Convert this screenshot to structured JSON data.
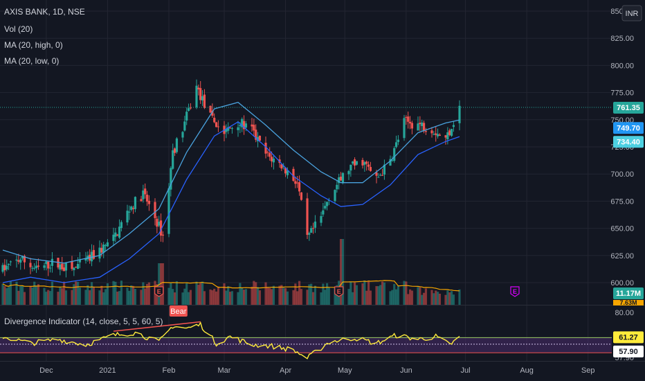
{
  "chart_data": {
    "type": "candlestick",
    "symbol_title": "AXIS BANK, 1D, NSE",
    "currency_badge": "INR",
    "indicators": [
      {
        "label": "Vol (20)",
        "color": "#d1d4dc"
      },
      {
        "label": "MA (20, high, 0)",
        "color": "#4aa3df"
      },
      {
        "label": "MA (20, low, 0)",
        "color": "#2962ff"
      }
    ],
    "price_axis": {
      "ticks": [
        "850.00",
        "825.00",
        "800.00",
        "775.00",
        "750.00",
        "725.00",
        "700.00",
        "675.00",
        "650.00",
        "625.00",
        "600.00"
      ],
      "ylim": [
        588,
        850
      ]
    },
    "time_axis": {
      "ticks": [
        "Dec",
        "2021",
        "Feb",
        "Mar",
        "Apr",
        "May",
        "Jun",
        "Jul",
        "Aug",
        "Sep"
      ],
      "start": "2020-11-09",
      "end": "2021-09-06"
    },
    "price_tags": [
      {
        "value": "761.35",
        "color": "#26a69a"
      },
      {
        "value": "749.70",
        "color": "#2196f3"
      },
      {
        "value": "734.40",
        "color": "#4dd0e1"
      }
    ],
    "volume_tag": {
      "value": "11.17M",
      "color": "#26a69a"
    },
    "volume_tag2": {
      "value": "7.63M",
      "color": "#f7a600"
    },
    "price_points": [
      {
        "d": "2020-11-09",
        "p": 612
      },
      {
        "d": "2020-11-18",
        "p": 622
      },
      {
        "d": "2020-11-26",
        "p": 612
      },
      {
        "d": "2020-12-04",
        "p": 618
      },
      {
        "d": "2020-12-14",
        "p": 612
      },
      {
        "d": "2020-12-23",
        "p": 622
      },
      {
        "d": "2021-01-04",
        "p": 640
      },
      {
        "d": "2021-01-12",
        "p": 668
      },
      {
        "d": "2021-01-19",
        "p": 682
      },
      {
        "d": "2021-01-25",
        "p": 660
      },
      {
        "d": "2021-01-29",
        "p": 643
      },
      {
        "d": "2021-02-03",
        "p": 720
      },
      {
        "d": "2021-02-08",
        "p": 742
      },
      {
        "d": "2021-02-15",
        "p": 780
      },
      {
        "d": "2021-02-22",
        "p": 752
      },
      {
        "d": "2021-03-01",
        "p": 738
      },
      {
        "d": "2021-03-08",
        "p": 748
      },
      {
        "d": "2021-03-15",
        "p": 740
      },
      {
        "d": "2021-03-22",
        "p": 718
      },
      {
        "d": "2021-03-30",
        "p": 708
      },
      {
        "d": "2021-04-07",
        "p": 692
      },
      {
        "d": "2021-04-12",
        "p": 640
      },
      {
        "d": "2021-04-19",
        "p": 660
      },
      {
        "d": "2021-04-23",
        "p": 680
      },
      {
        "d": "2021-05-03",
        "p": 705
      },
      {
        "d": "2021-05-10",
        "p": 712
      },
      {
        "d": "2021-05-17",
        "p": 695
      },
      {
        "d": "2021-05-24",
        "p": 712
      },
      {
        "d": "2021-05-31",
        "p": 748
      },
      {
        "d": "2021-06-07",
        "p": 746
      },
      {
        "d": "2021-06-14",
        "p": 742
      },
      {
        "d": "2021-06-21",
        "p": 732
      },
      {
        "d": "2021-06-28",
        "p": 761
      }
    ],
    "ma_high_points": [
      {
        "d": "2020-11-09",
        "p": 630
      },
      {
        "d": "2020-11-23",
        "p": 622
      },
      {
        "d": "2020-12-10",
        "p": 618
      },
      {
        "d": "2020-12-28",
        "p": 625
      },
      {
        "d": "2021-01-12",
        "p": 645
      },
      {
        "d": "2021-01-27",
        "p": 668
      },
      {
        "d": "2021-02-10",
        "p": 720
      },
      {
        "d": "2021-02-24",
        "p": 760
      },
      {
        "d": "2021-03-08",
        "p": 766
      },
      {
        "d": "2021-03-22",
        "p": 745
      },
      {
        "d": "2021-04-05",
        "p": 722
      },
      {
        "d": "2021-04-19",
        "p": 702
      },
      {
        "d": "2021-04-29",
        "p": 692
      },
      {
        "d": "2021-05-10",
        "p": 692
      },
      {
        "d": "2021-05-24",
        "p": 712
      },
      {
        "d": "2021-06-07",
        "p": 738
      },
      {
        "d": "2021-06-21",
        "p": 747
      },
      {
        "d": "2021-06-28",
        "p": 749.7
      }
    ],
    "ma_low_points": [
      {
        "d": "2020-11-09",
        "p": 600
      },
      {
        "d": "2020-11-23",
        "p": 605
      },
      {
        "d": "2020-12-10",
        "p": 600
      },
      {
        "d": "2020-12-28",
        "p": 605
      },
      {
        "d": "2021-01-12",
        "p": 622
      },
      {
        "d": "2021-01-27",
        "p": 645
      },
      {
        "d": "2021-02-10",
        "p": 695
      },
      {
        "d": "2021-02-24",
        "p": 735
      },
      {
        "d": "2021-03-08",
        "p": 748
      },
      {
        "d": "2021-03-22",
        "p": 725
      },
      {
        "d": "2021-04-05",
        "p": 698
      },
      {
        "d": "2021-04-19",
        "p": 680
      },
      {
        "d": "2021-04-29",
        "p": 670
      },
      {
        "d": "2021-05-10",
        "p": 672
      },
      {
        "d": "2021-05-24",
        "p": 690
      },
      {
        "d": "2021-06-07",
        "p": 718
      },
      {
        "d": "2021-06-21",
        "p": 730
      },
      {
        "d": "2021-06-28",
        "p": 734.4
      }
    ],
    "earnings_markers": [
      {
        "d": "2021-01-27",
        "label": "E",
        "color": "#e5534b"
      },
      {
        "d": "2021-04-28",
        "label": "E",
        "color": "#e5534b"
      },
      {
        "d": "2021-07-26",
        "label": "E",
        "color": "#d500f9"
      }
    ],
    "oscillator": {
      "label": "Divergence Indicator (14, close, 5, 5, 60, 5)",
      "ticks": [
        "80.00",
        "57.90"
      ],
      "ylim": [
        45,
        82
      ],
      "upper_line": 61.27,
      "mid_line": 57.9,
      "lower_line": 50,
      "tags": [
        {
          "value": "61.27",
          "color": "#ffeb3b"
        },
        {
          "value": "57.90",
          "color": "#ffffff"
        }
      ],
      "bear_label": "Bear",
      "points": [
        {
          "d": "2020-11-09",
          "v": 62
        },
        {
          "d": "2020-11-23",
          "v": 57
        },
        {
          "d": "2020-12-07",
          "v": 60
        },
        {
          "d": "2020-12-21",
          "v": 56
        },
        {
          "d": "2021-01-04",
          "v": 63
        },
        {
          "d": "2021-01-15",
          "v": 65
        },
        {
          "d": "2021-01-27",
          "v": 58
        },
        {
          "d": "2021-02-03",
          "v": 70
        },
        {
          "d": "2021-02-10",
          "v": 68
        },
        {
          "d": "2021-02-17",
          "v": 71
        },
        {
          "d": "2021-02-25",
          "v": 57
        },
        {
          "d": "2021-03-04",
          "v": 62
        },
        {
          "d": "2021-03-15",
          "v": 56
        },
        {
          "d": "2021-03-25",
          "v": 55
        },
        {
          "d": "2021-04-05",
          "v": 52
        },
        {
          "d": "2021-04-12",
          "v": 46
        },
        {
          "d": "2021-04-23",
          "v": 58
        },
        {
          "d": "2021-05-06",
          "v": 61
        },
        {
          "d": "2021-05-17",
          "v": 57
        },
        {
          "d": "2021-05-27",
          "v": 63
        },
        {
          "d": "2021-06-07",
          "v": 60
        },
        {
          "d": "2021-06-16",
          "v": 62
        },
        {
          "d": "2021-06-23",
          "v": 56
        },
        {
          "d": "2021-06-28",
          "v": 61.27
        }
      ],
      "bear_segment": [
        {
          "d": "2021-01-04",
          "v": 66
        },
        {
          "d": "2021-02-17",
          "v": 73
        }
      ]
    },
    "colors": {
      "background": "#131722",
      "grid": "#232632",
      "up": "#26a69a",
      "down": "#ef5350",
      "volume_ma": "#f7a600",
      "oscillator": "#ffeb3b",
      "bear": "#ef5350"
    }
  }
}
